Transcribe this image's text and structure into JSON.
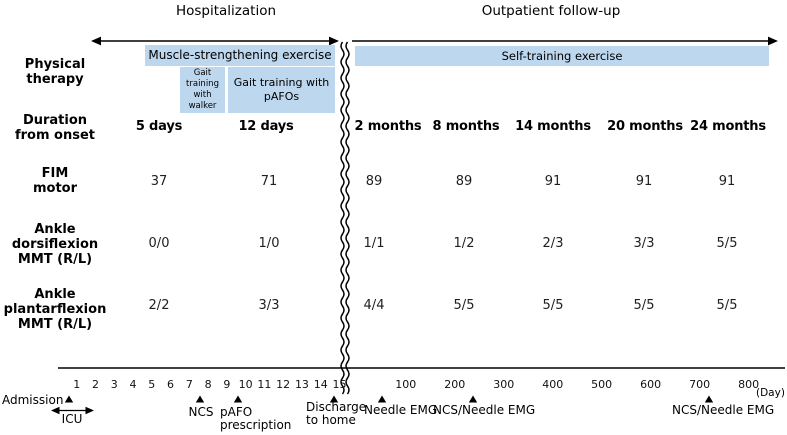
{
  "header": {
    "hospitalization_label": "Hospitalization",
    "outpatient_label": "Outpatient follow-up"
  },
  "therapy": {
    "row_label": "Physical\ntherapy",
    "muscle_box": "Muscle-strengthening exercise",
    "walker_box": "Gait training with walker",
    "pafos_box": "Gait training with pAFOs",
    "self_box": "Self-training exercise"
  },
  "table": {
    "duration_label": "Duration\nfrom onset",
    "duration": [
      "5 days",
      "12 days",
      "2 months",
      "8 months",
      "14 months",
      "20 months",
      "24 months"
    ],
    "fim_label": "FIM\nmotor",
    "fim": [
      "37",
      "71",
      "89",
      "89",
      "91",
      "91",
      "91"
    ],
    "dorsiflexion_label": "Ankle\ndorsiflexion\nMMT (R/L)",
    "dorsiflexion": [
      "0/0",
      "1/0",
      "1/1",
      "1/2",
      "2/3",
      "3/3",
      "5/5"
    ],
    "plantarflexion_label": "Ankle\nplantarflexion\nMMT (R/L)",
    "plantarflexion": [
      "2/2",
      "3/3",
      "4/4",
      "5/5",
      "5/5",
      "5/5",
      "5/5"
    ]
  },
  "axis": {
    "days": [
      "1",
      "2",
      "3",
      "4",
      "5",
      "6",
      "7",
      "8",
      "9",
      "10",
      "11",
      "12",
      "13",
      "14",
      "15"
    ],
    "hundreds": [
      "100",
      "200",
      "300",
      "400",
      "500",
      "600",
      "700",
      "800"
    ],
    "unit_label": "(Day)"
  },
  "events": {
    "admission": "Admission",
    "icu": "ICU",
    "ncs": "NCS",
    "pafo": "pAFO\nprescription",
    "discharge": "Discharge\nto home",
    "needle_emg": "Needle EMG",
    "ncs_needle_emg_mid": "NCS/Needle EMG",
    "ncs_needle_emg_late": "NCS/Needle EMG"
  },
  "colors": {
    "box_blue": "#BDD7EE",
    "line": "#000000"
  }
}
